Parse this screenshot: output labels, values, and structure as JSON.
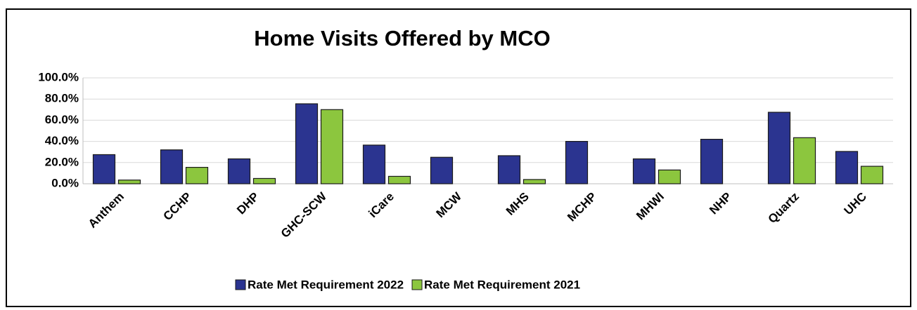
{
  "chart_data": {
    "type": "bar",
    "title": "Home Visits Offered by MCO",
    "categories": [
      "Anthem",
      "CCHP",
      "DHP",
      "GHC-SCW",
      "iCare",
      "MCW",
      "MHS",
      "MCHP",
      "MHWI",
      "NHP",
      "Quartz",
      "UHC"
    ],
    "series": [
      {
        "name": "Rate Met Requirement 2022",
        "color": "#2b3490",
        "values": [
          27.5,
          32,
          23.5,
          75.5,
          36.5,
          25,
          26.5,
          40,
          23.5,
          42,
          67.5,
          30.5
        ]
      },
      {
        "name": "Rate Met Requirement 2021",
        "color": "#8cc63e",
        "values": [
          3.5,
          15.5,
          5,
          70,
          7,
          null,
          4,
          null,
          13,
          null,
          43.5,
          16.5
        ]
      }
    ],
    "ylim": [
      0,
      100
    ],
    "yticks": [
      {
        "value": 0,
        "label": "0.0%"
      },
      {
        "value": 20,
        "label": "20.0%"
      },
      {
        "value": 40,
        "label": "40.0%"
      },
      {
        "value": 60,
        "label": "60.0%"
      },
      {
        "value": 80,
        "label": "80.0%"
      },
      {
        "value": 100,
        "label": "100.0%"
      }
    ],
    "grid": true,
    "legend": "bottom"
  }
}
